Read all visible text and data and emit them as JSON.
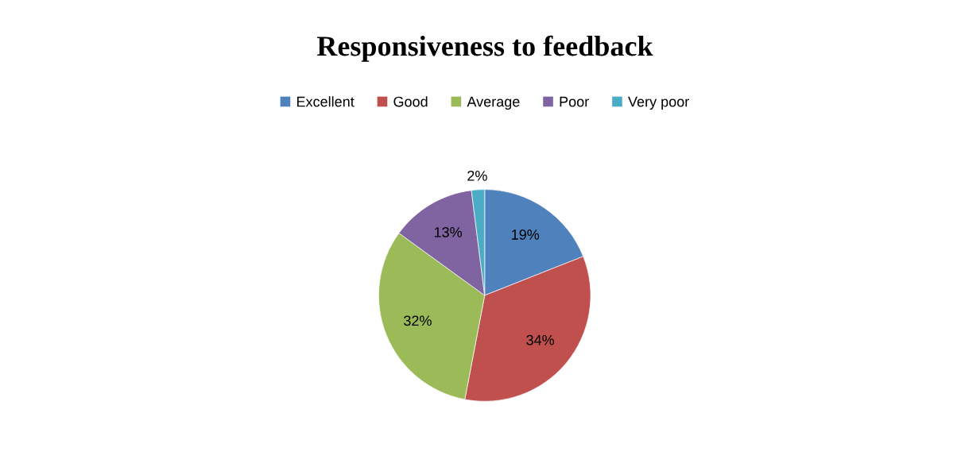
{
  "chart_data": {
    "type": "pie",
    "title": "Responsiveness to feedback",
    "categories": [
      "Excellent",
      "Good",
      "Average",
      "Poor",
      "Very poor"
    ],
    "values": [
      19,
      34,
      32,
      13,
      2
    ],
    "colors": [
      "#4f81bd",
      "#c0504d",
      "#9bbb59",
      "#8064a2",
      "#4bacc6"
    ],
    "value_labels": [
      "19%",
      "34%",
      "32%",
      "13%",
      "2%"
    ],
    "legend": "top"
  }
}
